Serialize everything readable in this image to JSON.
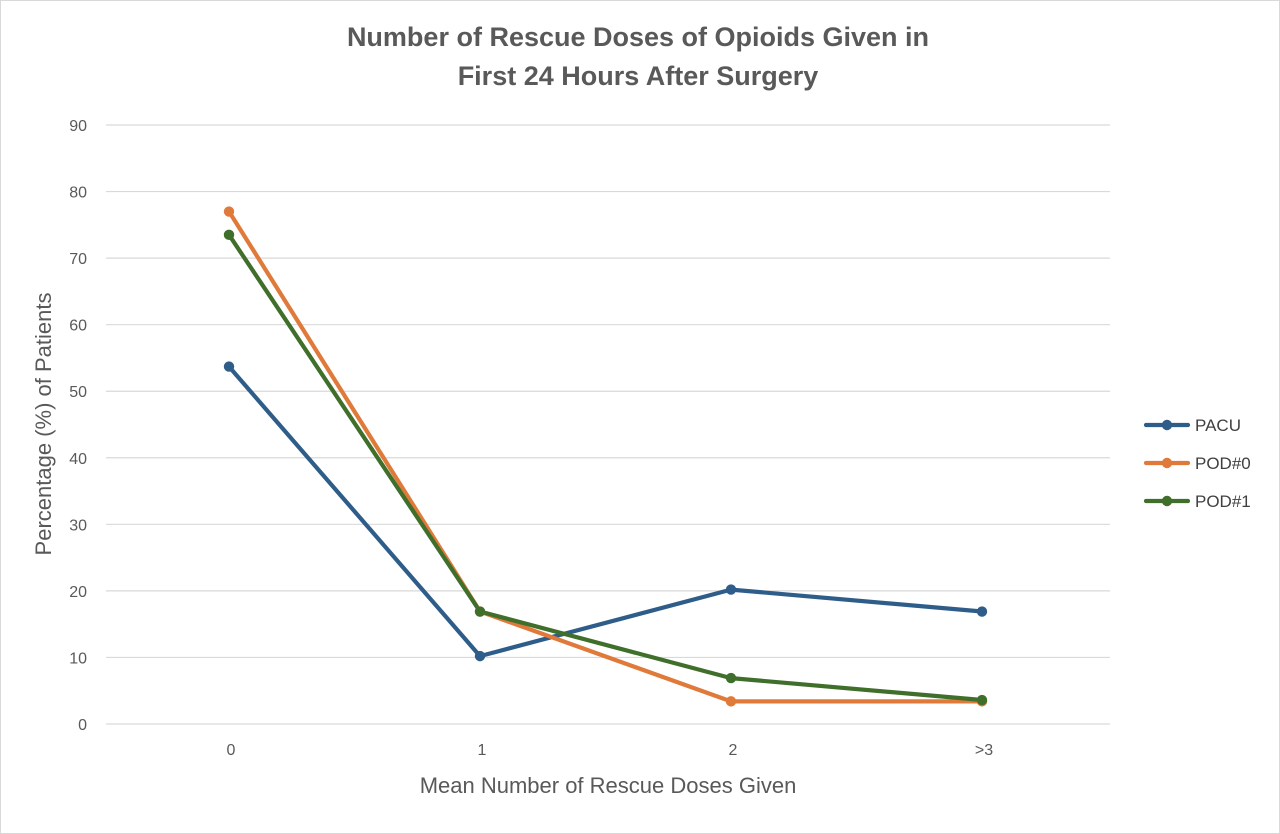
{
  "chart_data": {
    "type": "line",
    "title_lines": [
      "Number of Rescue Doses of Opioids Given in",
      "First 24 Hours After Surgery"
    ],
    "xlabel": "Mean Number of Rescue Doses Given",
    "ylabel": "Percentage (%) of Patients",
    "categories": [
      "0",
      "1",
      "2",
      ">3"
    ],
    "ylim": [
      0,
      90
    ],
    "yticks": [
      0,
      10,
      20,
      30,
      40,
      50,
      60,
      70,
      80,
      90
    ],
    "grid": "horizontal",
    "legend_position": "right",
    "series": [
      {
        "name": "PACU",
        "color": "#2f5d8a",
        "values": [
          53.7,
          10.2,
          20.2,
          16.9
        ]
      },
      {
        "name": "POD#0",
        "color": "#e07a3a",
        "values": [
          77.0,
          16.9,
          3.4,
          3.4
        ]
      },
      {
        "name": "POD#1",
        "color": "#3f6f2a",
        "values": [
          73.5,
          16.9,
          6.9,
          3.6
        ]
      }
    ]
  }
}
